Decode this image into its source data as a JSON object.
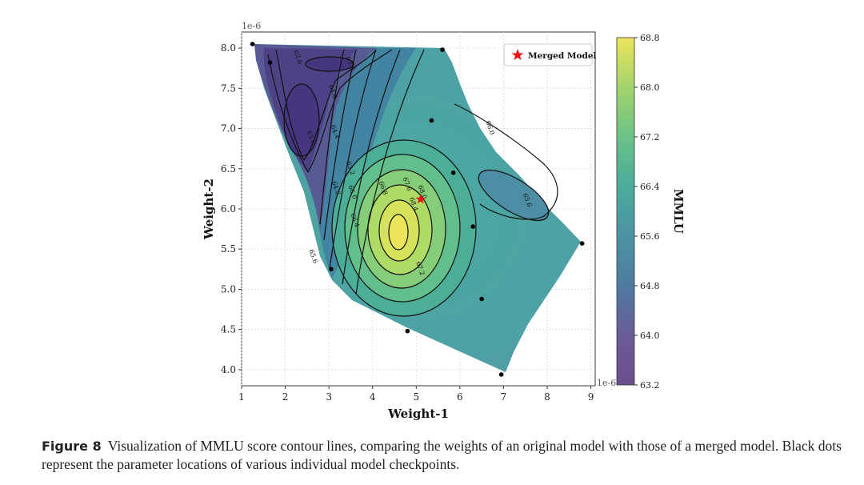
{
  "chart_data": {
    "type": "contour",
    "xlabel": "Weight-1",
    "ylabel": "Weight-2",
    "x_ticks": [
      1,
      2,
      3,
      4,
      5,
      6,
      7,
      8,
      9
    ],
    "y_ticks": [
      4.0,
      4.5,
      5.0,
      5.5,
      6.0,
      6.5,
      7.0,
      7.5,
      8.0
    ],
    "x_offset_label": "1e-6",
    "y_offset_label": "1e-6",
    "xlim": [
      1,
      9.1
    ],
    "ylim": [
      3.8,
      8.2
    ],
    "grid": true,
    "legend": {
      "placement": "top-right",
      "entries": [
        "Merged Model"
      ]
    },
    "colorbar": {
      "label": "MMLU",
      "range": [
        63.2,
        68.8
      ],
      "ticks": [
        "63.2",
        "64.0",
        "64.8",
        "65.6",
        "66.4",
        "67.2",
        "68.0",
        "68.8"
      ]
    },
    "checkpoints": [
      {
        "x": 1.25,
        "y": 8.05
      },
      {
        "x": 1.65,
        "y": 7.82
      },
      {
        "x": 5.6,
        "y": 7.98
      },
      {
        "x": 5.35,
        "y": 7.1
      },
      {
        "x": 5.85,
        "y": 6.45
      },
      {
        "x": 6.3,
        "y": 5.78
      },
      {
        "x": 3.05,
        "y": 5.25
      },
      {
        "x": 4.8,
        "y": 4.48
      },
      {
        "x": 6.5,
        "y": 4.88
      },
      {
        "x": 6.95,
        "y": 3.94
      },
      {
        "x": 8.8,
        "y": 5.57
      }
    ],
    "merged_model": {
      "x": 5.1,
      "y": 6.12
    },
    "contour_labels": [
      {
        "text": "63.6",
        "x": 2.25,
        "y": 7.88
      },
      {
        "text": "63.6",
        "x": 3.45,
        "y": 7.8
      },
      {
        "text": "64.0",
        "x": 3.05,
        "y": 7.45
      },
      {
        "text": "63.6",
        "x": 2.55,
        "y": 6.88
      },
      {
        "text": "64.4",
        "x": 3.1,
        "y": 6.95
      },
      {
        "text": "63.2",
        "x": 3.45,
        "y": 6.5
      },
      {
        "text": "64.8",
        "x": 3.12,
        "y": 6.25
      },
      {
        "text": "66.0",
        "x": 3.5,
        "y": 6.2
      },
      {
        "text": "66.8",
        "x": 4.2,
        "y": 6.25
      },
      {
        "text": "67.6",
        "x": 4.75,
        "y": 6.3
      },
      {
        "text": "68.0",
        "x": 5.1,
        "y": 6.2
      },
      {
        "text": "68.4",
        "x": 4.9,
        "y": 6.05
      },
      {
        "text": "66.4",
        "x": 3.55,
        "y": 5.85
      },
      {
        "text": "65.6",
        "x": 2.6,
        "y": 5.4
      },
      {
        "text": "67.2",
        "x": 5.05,
        "y": 5.25
      },
      {
        "text": "66.0",
        "x": 6.65,
        "y": 7.0
      },
      {
        "text": "65.6",
        "x": 7.5,
        "y": 6.1
      }
    ]
  },
  "caption": {
    "label": "Figure 8",
    "text": "Visualization of MMLU score contour lines, comparing the weights of an original model with those of a merged model. Black dots represent the parameter locations of various individual model checkpoints."
  },
  "colors": {
    "low": "#46327e",
    "mid": "#2e9e89",
    "high": "#e6e419",
    "merged_star": "#ee1111",
    "checkpoint": "#000000"
  }
}
